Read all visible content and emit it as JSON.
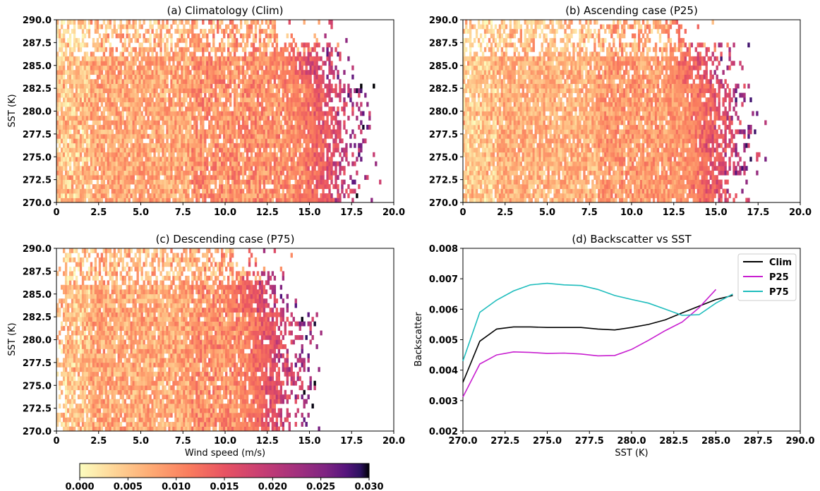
{
  "chart_data": [
    {
      "type": "heatmap",
      "title": "(a) Climatology (Clim)",
      "xlabel": "",
      "ylabel": "SST (K)",
      "xlim": [
        0,
        20
      ],
      "ylim": [
        270,
        290
      ],
      "xticks": [
        "0",
        "2.5",
        "5.0",
        "7.5",
        "10.0",
        "12.5",
        "15.0",
        "17.5",
        "20.0"
      ],
      "yticks": [
        "270.0",
        "272.5",
        "275.0",
        "277.5",
        "280.0",
        "282.5",
        "285.0",
        "287.5",
        "290.0"
      ],
      "colormap": "magma_r",
      "value_range": [
        0,
        0.03
      ],
      "data_extent_wind": [
        0,
        20
      ],
      "data_extent_sst": [
        270,
        290
      ]
    },
    {
      "type": "heatmap",
      "title": "(b) Ascending case (P25)",
      "xlabel": "",
      "ylabel": "",
      "xlim": [
        0,
        20
      ],
      "ylim": [
        270,
        290
      ],
      "xticks": [
        "0",
        "2.5",
        "5.0",
        "7.5",
        "10.0",
        "12.5",
        "15.0",
        "17.5",
        "20.0"
      ],
      "yticks": [
        "270.0",
        "272.5",
        "275.0",
        "277.5",
        "280.0",
        "282.5",
        "285.0",
        "287.5",
        "290.0"
      ],
      "colormap": "magma_r",
      "value_range": [
        0,
        0.03
      ],
      "data_extent_wind": [
        0,
        20
      ],
      "data_extent_sst": [
        270,
        290
      ]
    },
    {
      "type": "heatmap",
      "title": "(c) Descending case (P75)",
      "xlabel": "Wind speed (m/s)",
      "ylabel": "SST (K)",
      "xlim": [
        0,
        20
      ],
      "ylim": [
        270,
        290
      ],
      "xticks": [
        "0",
        "2.5",
        "5.0",
        "7.5",
        "10.0",
        "12.5",
        "15.0",
        "17.5",
        "20.0"
      ],
      "yticks": [
        "270.0",
        "272.5",
        "275.0",
        "277.5",
        "280.0",
        "282.5",
        "285.0",
        "287.5",
        "290.0"
      ],
      "colormap": "magma_r",
      "value_range": [
        0,
        0.03
      ],
      "data_extent_wind": [
        0,
        19.5
      ],
      "data_extent_sst": [
        270,
        290
      ]
    },
    {
      "type": "line",
      "title": "(d) Backscatter vs SST",
      "xlabel": "SST (K)",
      "ylabel": "Backscatter",
      "xlim": [
        270,
        290
      ],
      "ylim": [
        0.002,
        0.008
      ],
      "xticks": [
        "270.0",
        "272.5",
        "275.0",
        "277.5",
        "280.0",
        "282.5",
        "285.0",
        "287.5",
        "290.0"
      ],
      "yticks": [
        "0.002",
        "0.003",
        "0.004",
        "0.005",
        "0.006",
        "0.007",
        "0.008"
      ],
      "legend_position": "top-right",
      "x": [
        270,
        271,
        272,
        273,
        274,
        275,
        276,
        277,
        278,
        279,
        280,
        281,
        282,
        283,
        284,
        285,
        286
      ],
      "series": [
        {
          "name": "Clim",
          "color": "#000000",
          "values": [
            0.0036,
            0.00495,
            0.00535,
            0.00542,
            0.00542,
            0.0054,
            0.0054,
            0.0054,
            0.00535,
            0.00532,
            0.0054,
            0.0055,
            0.00565,
            0.00588,
            0.0061,
            0.00632,
            0.00645
          ]
        },
        {
          "name": "P25",
          "color": "#c81fd0",
          "values": [
            0.00312,
            0.0042,
            0.0045,
            0.0046,
            0.00458,
            0.00455,
            0.00456,
            0.00453,
            0.00447,
            0.00448,
            0.00468,
            0.00498,
            0.0053,
            0.00558,
            0.00605,
            0.00665,
            null
          ]
        },
        {
          "name": "P75",
          "color": "#1fbdbd",
          "values": [
            0.0043,
            0.0059,
            0.0063,
            0.0066,
            0.0068,
            0.00685,
            0.0068,
            0.00678,
            0.00665,
            0.00645,
            0.00632,
            0.0062,
            0.006,
            0.0058,
            0.00582,
            0.0062,
            0.0065
          ]
        }
      ]
    }
  ],
  "colorbar": {
    "ticks": [
      "0.000",
      "0.005",
      "0.010",
      "0.015",
      "0.020",
      "0.025",
      "0.030"
    ],
    "colormap": "magma_r"
  }
}
